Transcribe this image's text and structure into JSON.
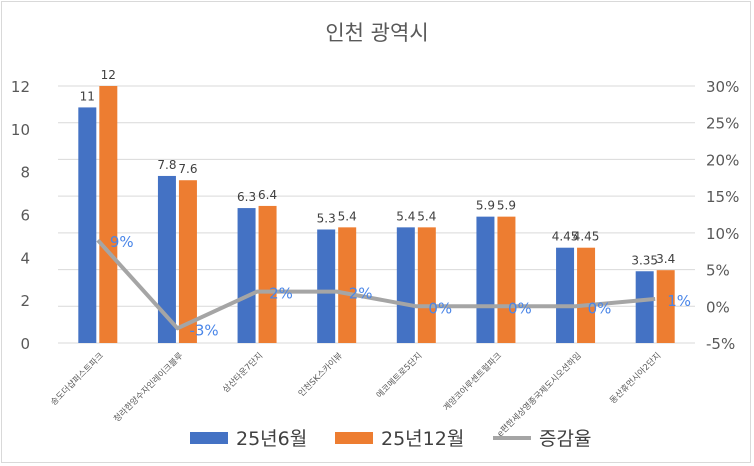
{
  "chart_data": {
    "type": "bar",
    "title": "인천 광역시",
    "categories": [
      "송도더샵퍼스트파크",
      "청라한양수자인레이크블루",
      "삼산타운7단지",
      "인천SK스카이뷰",
      "에코메트로5단지",
      "계양코아루센트럴파크",
      "e편한세상영종국제도시오션하임",
      "동산휴먼시아2단지"
    ],
    "series": [
      {
        "name": "25년6월",
        "values": [
          11,
          7.8,
          6.3,
          5.3,
          5.4,
          5.9,
          4.45,
          3.35
        ],
        "labels": [
          "11",
          "7.8",
          "6.3",
          "5.3",
          "5.4",
          "5.9",
          "4.45",
          "3.35"
        ],
        "color": "#4472C4"
      },
      {
        "name": "25년12월",
        "values": [
          12,
          7.6,
          6.4,
          5.4,
          5.4,
          5.9,
          4.45,
          3.4
        ],
        "labels": [
          "12",
          "7.6",
          "6.4",
          "5.4",
          "5.4",
          "5.9",
          "4.45",
          "3.4"
        ],
        "color": "#ED7D31"
      },
      {
        "name": "증감율",
        "type": "line",
        "axis": "right",
        "values": [
          9,
          -3,
          2,
          2,
          0,
          0,
          0,
          1
        ],
        "labels": [
          "9%",
          "-3%",
          "2%",
          "2%",
          "0%",
          "0%",
          "0%",
          "1%"
        ],
        "color": "#A5A5A5",
        "label_color": "#4A86E8"
      }
    ],
    "y_left": {
      "range": [
        0,
        12
      ],
      "ticks": [
        "0",
        "2",
        "4",
        "6",
        "8",
        "10",
        "12"
      ]
    },
    "y_right": {
      "range": [
        -5,
        30
      ],
      "ticks": [
        "-5%",
        "0%",
        "5%",
        "10%",
        "15%",
        "20%",
        "25%",
        "30%"
      ]
    },
    "grid": true,
    "legend": "bottom"
  }
}
